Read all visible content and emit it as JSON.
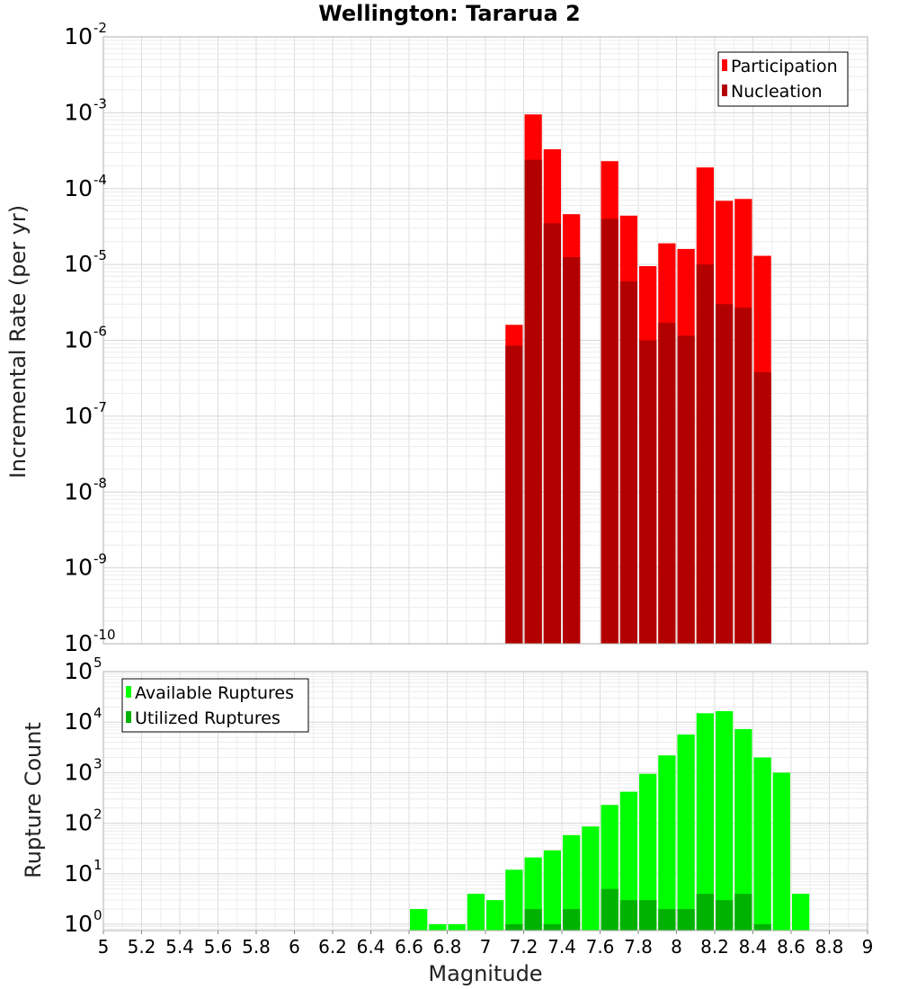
{
  "chart_data": [
    {
      "type": "bar",
      "title": "Wellington: Tararua 2",
      "ylabel": "Incremental Rate (per yr)",
      "yscale": "log",
      "ylim": [
        1e-10,
        0.01
      ],
      "xlim": [
        5,
        9
      ],
      "legend_position": "top-right",
      "bar_width": 0.1,
      "series": [
        {
          "name": "Participation",
          "color": "#ff0000",
          "x": [
            7.15,
            7.25,
            7.35,
            7.45,
            7.65,
            7.75,
            7.85,
            7.95,
            8.05,
            8.15,
            8.25,
            8.35,
            8.45
          ],
          "values": [
            1.6e-06,
            0.00095,
            0.00033,
            4.6e-05,
            0.00023,
            4.4e-05,
            9.5e-06,
            1.9e-05,
            1.6e-05,
            0.00019,
            6.9e-05,
            7.3e-05,
            1.3e-05
          ]
        },
        {
          "name": "Nucleation",
          "color": "#b20000",
          "x": [
            7.15,
            7.25,
            7.35,
            7.45,
            7.65,
            7.75,
            7.85,
            7.95,
            8.05,
            8.15,
            8.25,
            8.35,
            8.45
          ],
          "values": [
            8.5e-07,
            0.00024,
            3.5e-05,
            1.25e-05,
            4e-05,
            6e-06,
            1e-06,
            1.7e-06,
            1.15e-06,
            1e-05,
            3e-06,
            2.7e-06,
            3.8e-07
          ]
        }
      ]
    },
    {
      "type": "bar",
      "xlabel": "Magnitude",
      "ylabel": "Rupture Count",
      "yscale": "log",
      "ylim": [
        0.75,
        100000.0
      ],
      "xlim": [
        5,
        9
      ],
      "legend_position": "top-left",
      "bar_width": 0.1,
      "series": [
        {
          "name": "Available Ruptures",
          "color": "#00ff00",
          "x": [
            6.65,
            6.75,
            6.85,
            6.95,
            7.05,
            7.15,
            7.25,
            7.35,
            7.45,
            7.55,
            7.65,
            7.75,
            7.85,
            7.95,
            8.05,
            8.15,
            8.25,
            8.35,
            8.45,
            8.55,
            8.65
          ],
          "values": [
            2,
            1,
            1,
            4,
            3,
            12,
            21,
            29,
            58,
            86,
            230,
            420,
            950,
            2200,
            5700,
            15000,
            16500,
            7300,
            2000,
            1000,
            4
          ]
        },
        {
          "name": "Utilized Ruptures",
          "color": "#00b200",
          "x": [
            7.15,
            7.25,
            7.35,
            7.45,
            7.65,
            7.75,
            7.85,
            7.95,
            8.05,
            8.15,
            8.25,
            8.35,
            8.45
          ],
          "values": [
            1,
            2,
            1,
            2,
            5,
            3,
            3,
            2,
            2,
            4,
            3,
            4,
            1
          ]
        }
      ]
    }
  ],
  "x_ticks": [
    "5",
    "5.2",
    "5.4",
    "5.6",
    "5.8",
    "6",
    "6.2",
    "6.4",
    "6.6",
    "6.8",
    "7",
    "7.2",
    "7.4",
    "7.6",
    "7.8",
    "8",
    "8.2",
    "8.4",
    "8.6",
    "8.8",
    "9"
  ],
  "top_y_ticks": [
    {
      "base": "10",
      "exp": "-10"
    },
    {
      "base": "10",
      "exp": "-9"
    },
    {
      "base": "10",
      "exp": "-8"
    },
    {
      "base": "10",
      "exp": "-7"
    },
    {
      "base": "10",
      "exp": "-6"
    },
    {
      "base": "10",
      "exp": "-5"
    },
    {
      "base": "10",
      "exp": "-4"
    },
    {
      "base": "10",
      "exp": "-3"
    },
    {
      "base": "10",
      "exp": "-2"
    }
  ],
  "bottom_y_ticks": [
    {
      "base": "10",
      "exp": "0"
    },
    {
      "base": "10",
      "exp": "1"
    },
    {
      "base": "10",
      "exp": "2"
    },
    {
      "base": "10",
      "exp": "3"
    },
    {
      "base": "10",
      "exp": "4"
    },
    {
      "base": "10",
      "exp": "5"
    }
  ]
}
